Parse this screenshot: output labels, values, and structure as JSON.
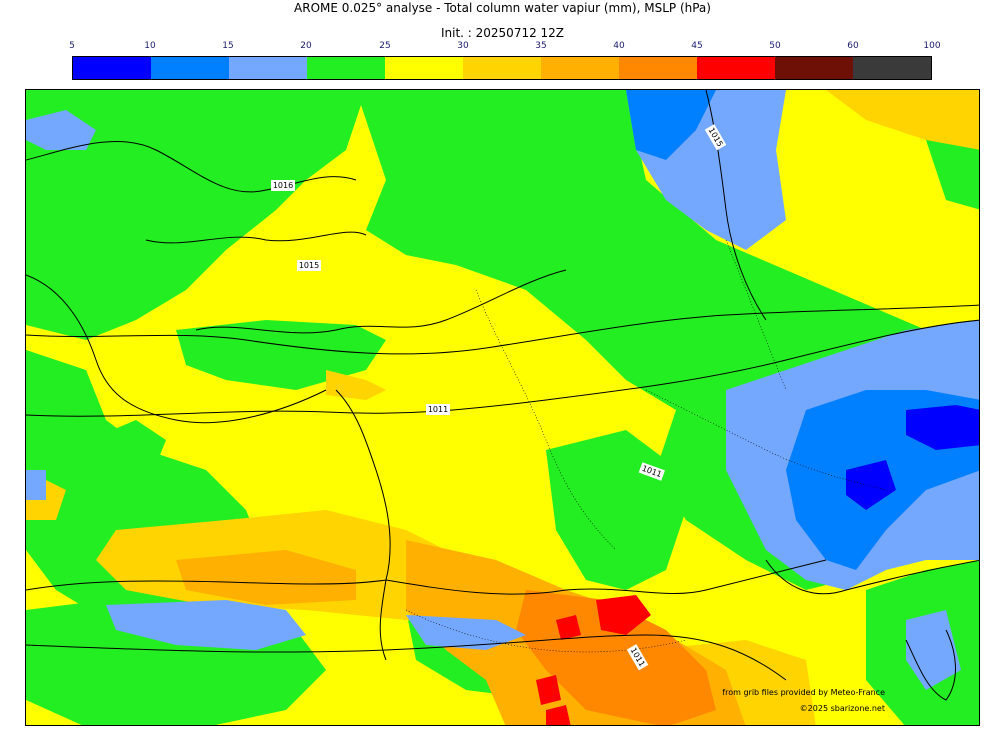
{
  "header": {
    "title": "AROME 0.025° analyse - Total column water vapiur (mm), MSLP (hPa)",
    "init": "Init. : 20250712 12Z"
  },
  "colorbar": {
    "ticks": [
      "5",
      "10",
      "15",
      "20",
      "25",
      "30",
      "35",
      "40",
      "45",
      "50",
      "60",
      "100"
    ],
    "colors": [
      "#0000ff",
      "#0080ff",
      "#74a8ff",
      "#22ee22",
      "#ffff00",
      "#ffd400",
      "#ffb000",
      "#ff8800",
      "#ff0000",
      "#6e1006",
      "#3a3a3a"
    ]
  },
  "map": {
    "isobar_labels": [
      "1016",
      "1015",
      "1011",
      "1015",
      "1011",
      "1011"
    ],
    "credit_source": "from grib files provided by Meteo-France",
    "credit_copyright": "©2025 sbarizone.net"
  }
}
